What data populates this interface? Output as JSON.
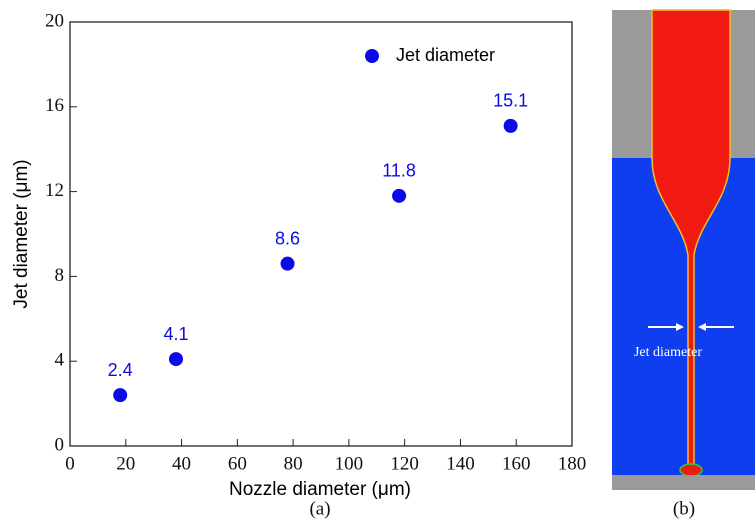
{
  "chart_data": {
    "type": "scatter",
    "xlabel": "Nozzle diameter (μm)",
    "ylabel": "Jet diameter (μm)",
    "series": [
      {
        "name": "Jet diameter",
        "color": "#0b0be6",
        "x": [
          18,
          38,
          78,
          118,
          158
        ],
        "values": [
          2.4,
          4.1,
          8.6,
          11.8,
          15.1
        ]
      }
    ],
    "xlim": [
      0,
      180
    ],
    "xticks": [
      0,
      20,
      40,
      60,
      80,
      100,
      120,
      140,
      160,
      180
    ],
    "ylim": [
      0,
      20
    ],
    "yticks": [
      0,
      4,
      8,
      12,
      16,
      20
    ],
    "legend": "upper right",
    "data_labels": true
  },
  "panel_labels": [
    "(a)",
    "(b)"
  ],
  "simulation": {
    "annotation": "Jet diameter"
  }
}
